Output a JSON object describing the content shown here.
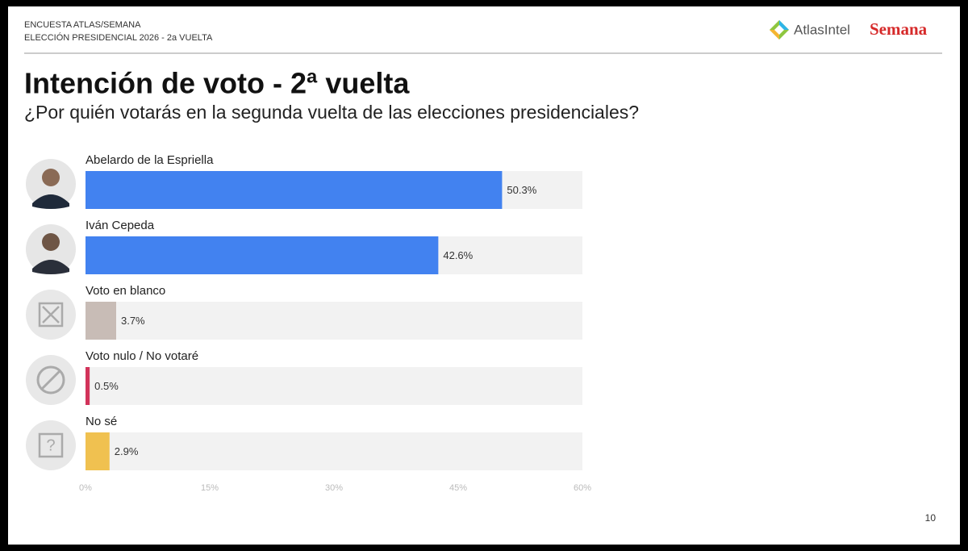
{
  "header": {
    "line1": "ENCUESTA ATLAS/SEMANA",
    "line2": "ELECCIÓN PRESIDENCIAL 2026 - 2a VUELTA",
    "logo1": "AtlasIntel",
    "logo2": "Semana"
  },
  "page_number": "10",
  "chart_data": {
    "type": "hbar",
    "title": "Intención de voto - 2ª vuelta",
    "subtitle": "¿Por quién votarás en la segunda vuelta de las elecciones presidenciales?",
    "categories": [
      "Abelardo de la Espriella",
      "Iván Cepeda",
      "Voto en blanco",
      "Voto nulo / No votaré",
      "No sé"
    ],
    "values": [
      50.3,
      42.6,
      3.7,
      0.5,
      2.9
    ],
    "value_labels": [
      "50.3%",
      "42.6%",
      "3.7%",
      "0.5%",
      "2.9%"
    ],
    "colors": [
      "#4282f0",
      "#4282f0",
      "#c8bcb6",
      "#d2335a",
      "#f0c150"
    ],
    "xlim": [
      0,
      60
    ],
    "xticks": [
      {
        "value": 0,
        "label": "0%"
      },
      {
        "value": 15,
        "label": "15%"
      },
      {
        "value": 30,
        "label": "30%"
      },
      {
        "value": 45,
        "label": "45%"
      },
      {
        "value": 60,
        "label": "60%"
      }
    ]
  }
}
